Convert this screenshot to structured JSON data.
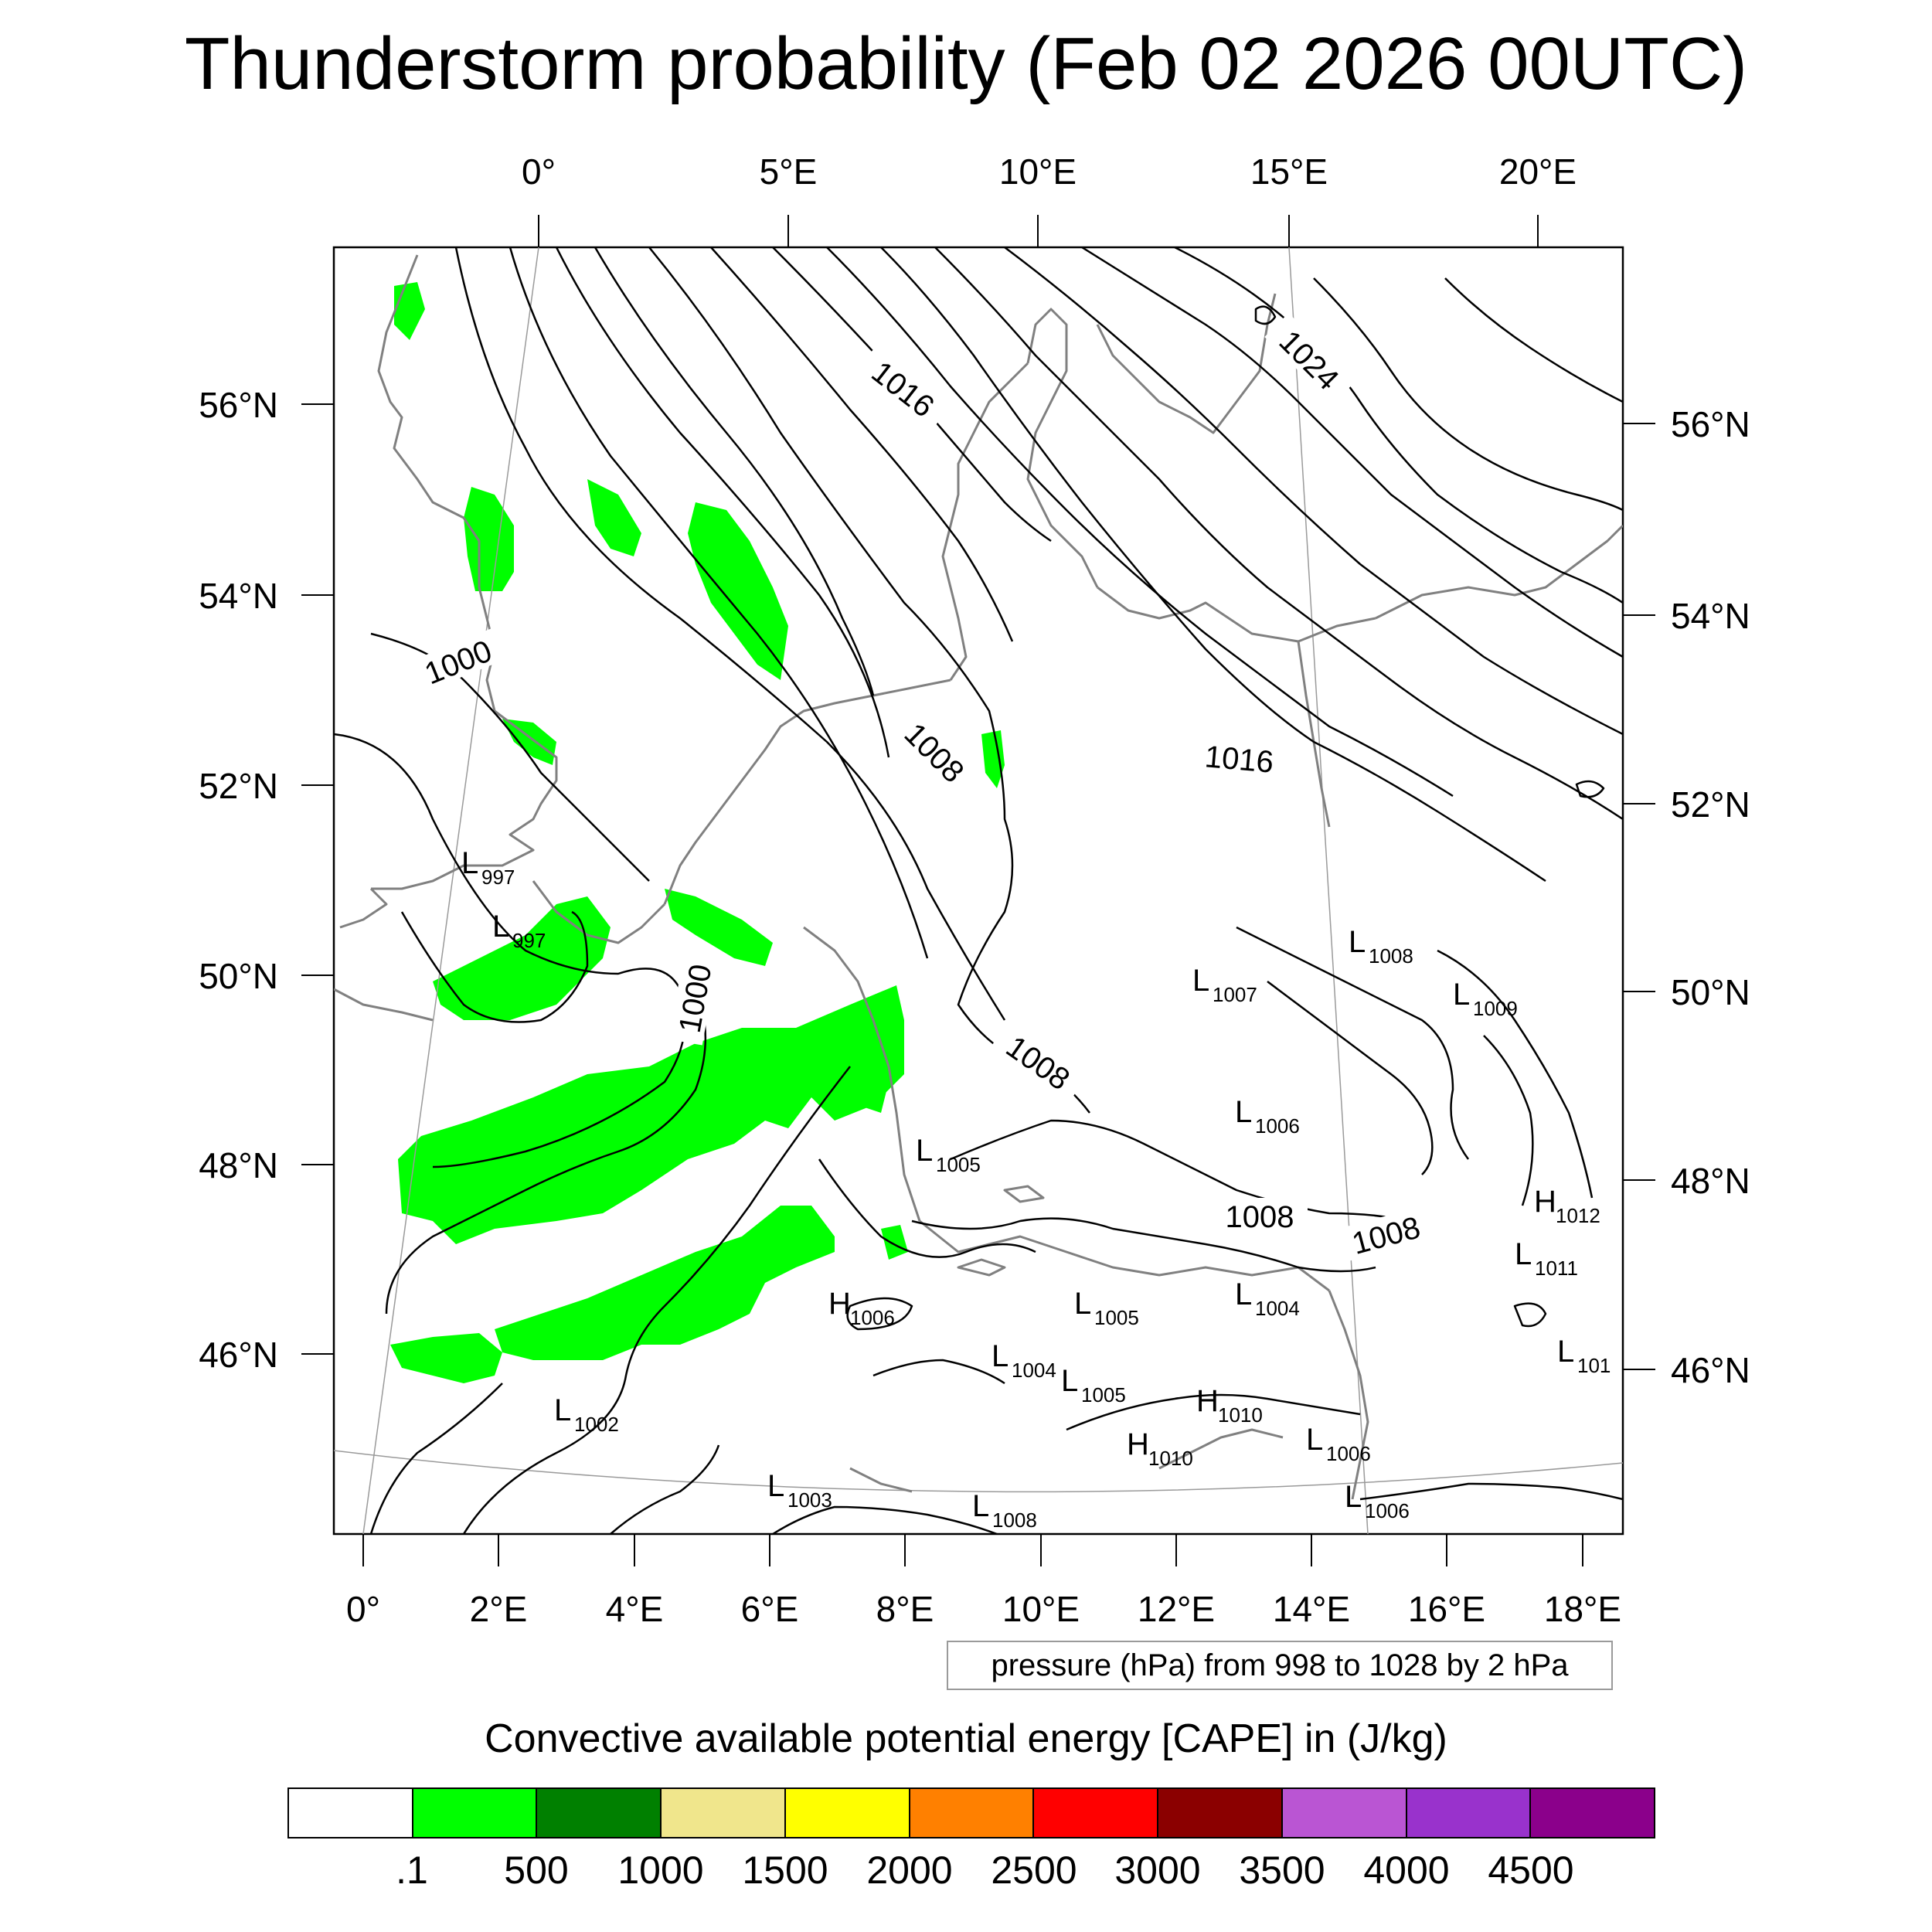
{
  "title": "Thunderstorm probability (Feb 02 2026 00UTC)",
  "colors": {
    "cape_green": "#00ff00",
    "contour": "#000000",
    "coastline": "#808080",
    "graticule": "#9a9a9a"
  },
  "top_lon_labels": [
    "0°",
    "5°E",
    "10°E",
    "15°E",
    "20°E"
  ],
  "bottom_lon_labels": [
    "0°",
    "2°E",
    "4°E",
    "6°E",
    "8°E",
    "10°E",
    "12°E",
    "14°E",
    "16°E",
    "18°E"
  ],
  "left_lat_labels": [
    "56°N",
    "54°N",
    "52°N",
    "50°N",
    "48°N",
    "46°N"
  ],
  "right_lat_labels": [
    "56°N",
    "54°N",
    "52°N",
    "50°N",
    "48°N",
    "46°N"
  ],
  "contour_labels": [
    "1016",
    "1024",
    "1000",
    "1008",
    "1016",
    "1000",
    "1008",
    "1008",
    "1008"
  ],
  "pressure_centers": [
    {
      "type": "L",
      "value": "997"
    },
    {
      "type": "L",
      "value": "997"
    },
    {
      "type": "L",
      "value": "1008"
    },
    {
      "type": "L",
      "value": "1007"
    },
    {
      "type": "L",
      "value": "1009"
    },
    {
      "type": "L",
      "value": "1006"
    },
    {
      "type": "L",
      "value": "1005"
    },
    {
      "type": "H",
      "value": "1012"
    },
    {
      "type": "L",
      "value": "1011"
    },
    {
      "type": "L",
      "value": "1004"
    },
    {
      "type": "H",
      "value": "1006"
    },
    {
      "type": "L",
      "value": "1005"
    },
    {
      "type": "L",
      "value": "101"
    },
    {
      "type": "L",
      "value": "1004"
    },
    {
      "type": "L",
      "value": "1005"
    },
    {
      "type": "H",
      "value": "1010"
    },
    {
      "type": "L",
      "value": "1002"
    },
    {
      "type": "H",
      "value": "1010"
    },
    {
      "type": "L",
      "value": "1006"
    },
    {
      "type": "L",
      "value": "1003"
    },
    {
      "type": "L",
      "value": "1008"
    },
    {
      "type": "L",
      "value": "1006"
    }
  ],
  "pressure_note": "pressure (hPa) from 998 to 1028 by 2 hPa",
  "colorbar": {
    "title": "Convective available potential energy [CAPE] in (J/kg)",
    "colors": [
      "#ffffff",
      "#00ff00",
      "#008000",
      "#f0e68c",
      "#ffff00",
      "#ff8000",
      "#ff0000",
      "#8b0000",
      "#ba55d3",
      "#9932cc",
      "#8b008b"
    ],
    "labels": [
      ".1",
      "500",
      "1000",
      "1500",
      "2000",
      "2500",
      "3000",
      "3500",
      "4000",
      "4500"
    ]
  }
}
